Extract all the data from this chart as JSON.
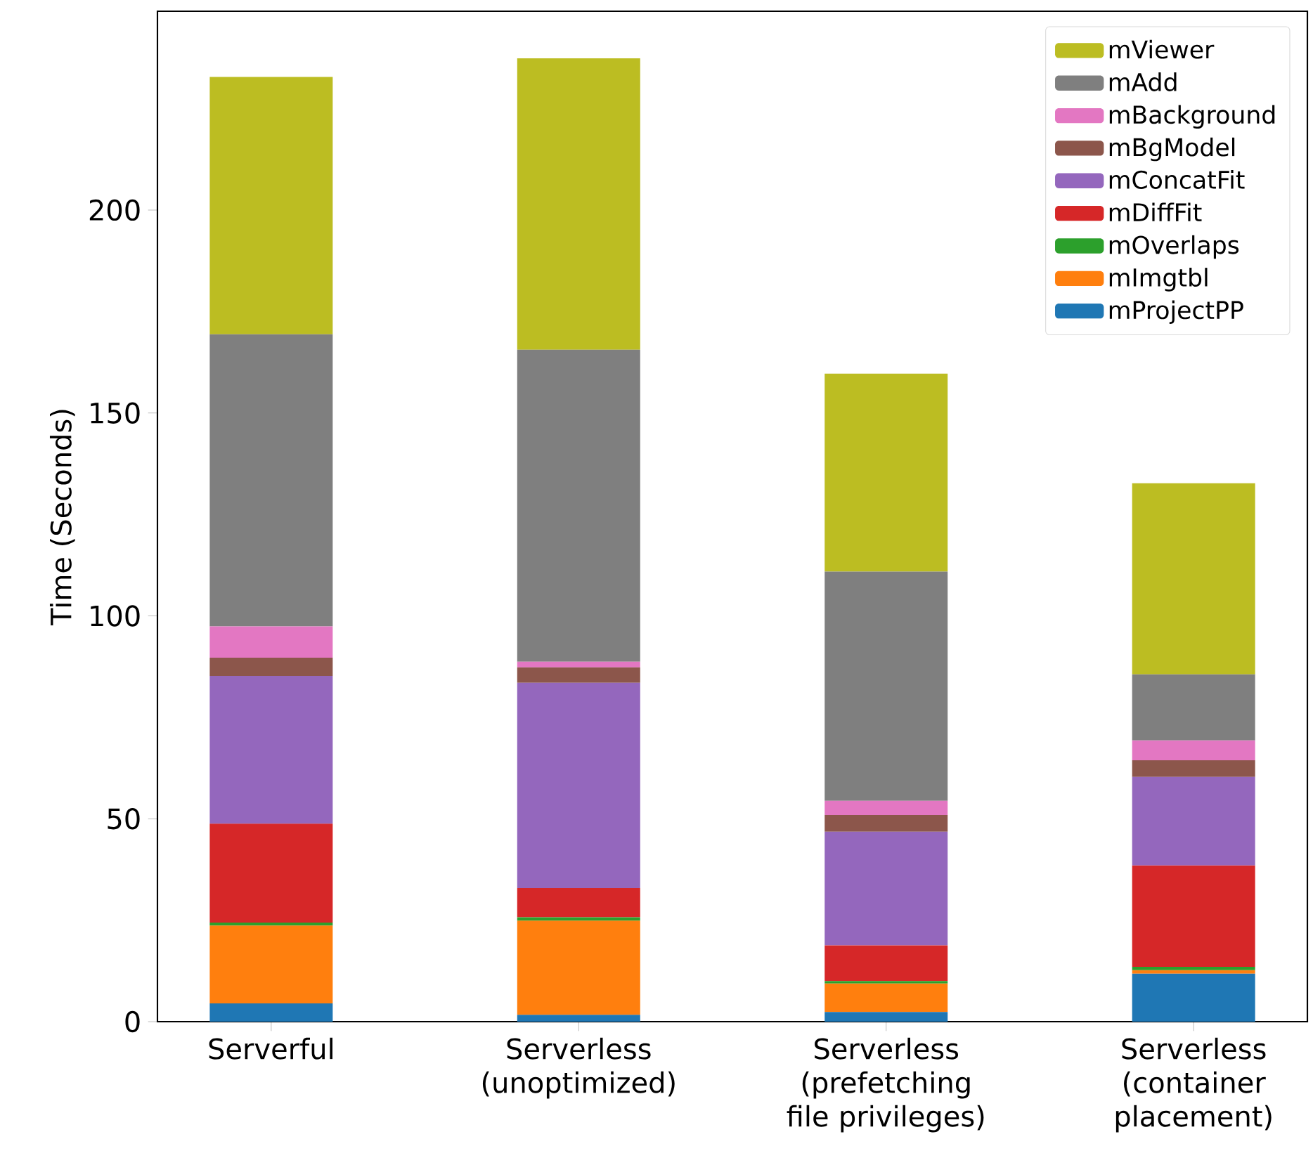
{
  "chart_data": {
    "type": "bar",
    "stacked": true,
    "ylabel": "Time (Seconds)",
    "categories": [
      "Serverful",
      "Serverless (unoptimized)",
      "Serverless (prefetching file privileges)",
      "Serverless (container placement)"
    ],
    "series": [
      {
        "name": "mProjectPP",
        "color": "#1f77b4",
        "values": [
          4.5,
          1.7,
          2.4,
          11.8
        ]
      },
      {
        "name": "mImgtbl",
        "color": "#ff7f0e",
        "values": [
          19.2,
          23.2,
          7.0,
          0.9
        ]
      },
      {
        "name": "mOverlaps",
        "color": "#2ca02c",
        "values": [
          0.7,
          0.8,
          0.6,
          0.8
        ]
      },
      {
        "name": "mDiffFit",
        "color": "#d62728",
        "values": [
          24.4,
          7.2,
          8.8,
          25.0
        ]
      },
      {
        "name": "mConcatFit",
        "color": "#9467bd",
        "values": [
          36.4,
          50.6,
          28.0,
          21.8
        ]
      },
      {
        "name": "mBgModel",
        "color": "#8c564b",
        "values": [
          4.5,
          3.8,
          4.1,
          4.1
        ]
      },
      {
        "name": "mBackground",
        "color": "#e377c2",
        "values": [
          7.7,
          1.4,
          3.5,
          4.9
        ]
      },
      {
        "name": "mAdd",
        "color": "#7f7f7f",
        "values": [
          72.0,
          76.9,
          56.5,
          16.3
        ]
      },
      {
        "name": "mViewer",
        "color": "#bcbd22",
        "values": [
          63.4,
          71.8,
          48.8,
          47.1
        ]
      }
    ],
    "ylim": [
      0,
      249
    ],
    "yticks": [
      0,
      50,
      100,
      150,
      200
    ],
    "grid": false,
    "legend": "top right"
  }
}
